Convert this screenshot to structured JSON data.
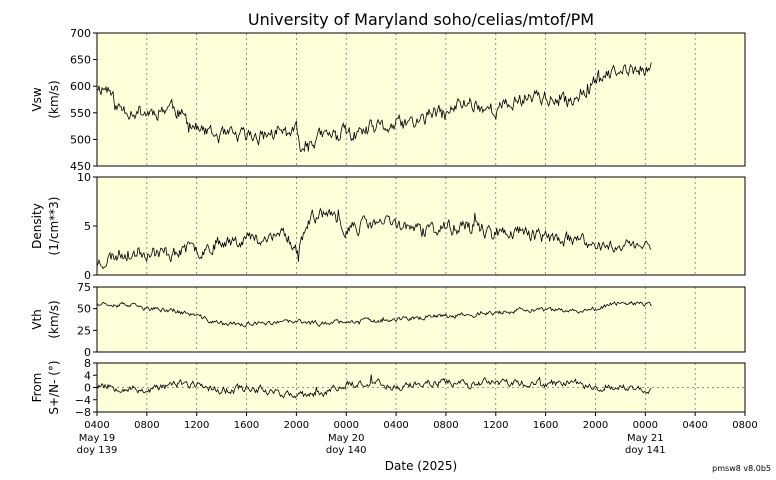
{
  "chart_data": {
    "type": "line",
    "title": "University of Maryland  soho/celias/mtof/PM",
    "xlabel": "Date (2025)",
    "footer": "pmsw8 v8.0b5",
    "x_range_hours": [
      0,
      52
    ],
    "x_ticks": [
      "0400",
      "0800",
      "1200",
      "1600",
      "2000",
      "0000",
      "0400",
      "0800",
      "1200",
      "1600",
      "2000",
      "0000",
      "0400",
      "0800"
    ],
    "date_labels": [
      {
        "tick_index": 0,
        "line1": "May 19",
        "line2": "doy 139"
      },
      {
        "tick_index": 5,
        "line1": "May 20",
        "line2": "doy 140"
      },
      {
        "tick_index": 11,
        "line1": "May 21",
        "line2": "doy 141"
      }
    ],
    "colors": {
      "panel_bg": "#ffffd9",
      "trace": "#000000",
      "grid": "#777777"
    },
    "panels": [
      {
        "name": "Vsw",
        "ylabel": [
          "Vsw",
          "(km/s)"
        ],
        "ylim": [
          450,
          700
        ],
        "yticks": [
          450,
          500,
          550,
          600,
          650,
          700
        ],
        "ytick_labels": [
          "450",
          "500",
          "550",
          "600",
          "650",
          "700"
        ],
        "zero_line": false,
        "seed": 11,
        "noise": 12,
        "profile": [
          [
            0,
            600
          ],
          [
            1,
            595
          ],
          [
            1.5,
            560
          ],
          [
            3,
            555
          ],
          [
            4,
            550
          ],
          [
            5,
            555
          ],
          [
            6,
            565
          ],
          [
            7,
            540
          ],
          [
            8,
            520
          ],
          [
            9,
            510
          ],
          [
            10,
            505
          ],
          [
            12,
            505
          ],
          [
            14,
            510
          ],
          [
            16,
            515
          ],
          [
            16.2,
            485
          ],
          [
            18,
            505
          ],
          [
            20,
            512
          ],
          [
            21,
            505
          ],
          [
            22,
            520
          ],
          [
            24,
            525
          ],
          [
            26,
            535
          ],
          [
            27,
            550
          ],
          [
            28,
            545
          ],
          [
            29,
            565
          ],
          [
            30,
            570
          ],
          [
            31,
            560
          ],
          [
            32,
            555
          ],
          [
            33,
            565
          ],
          [
            34,
            575
          ],
          [
            35,
            585
          ],
          [
            36,
            580
          ],
          [
            37,
            565
          ],
          [
            38,
            575
          ],
          [
            39,
            590
          ],
          [
            40,
            615
          ],
          [
            41,
            620
          ],
          [
            42,
            625
          ],
          [
            43,
            630
          ],
          [
            44.5,
            635
          ]
        ]
      },
      {
        "name": "Density",
        "ylabel": [
          "Density",
          "(1/cm**3)"
        ],
        "ylim": [
          0,
          10
        ],
        "yticks": [
          0,
          5,
          10
        ],
        "ytick_labels": [
          "0",
          "5",
          "10"
        ],
        "zero_line": false,
        "seed": 23,
        "noise": 0.6,
        "profile": [
          [
            0,
            1.2
          ],
          [
            2,
            2.3
          ],
          [
            4,
            2.4
          ],
          [
            6,
            2.2
          ],
          [
            7,
            2.6
          ],
          [
            8,
            2.5
          ],
          [
            9,
            3.0
          ],
          [
            10,
            3.5
          ],
          [
            12,
            3.8
          ],
          [
            14,
            3.5
          ],
          [
            15,
            4.5
          ],
          [
            16,
            2.5
          ],
          [
            17,
            5.5
          ],
          [
            18,
            6.5
          ],
          [
            19,
            5.5
          ],
          [
            20,
            4.8
          ],
          [
            21,
            5.0
          ],
          [
            22,
            5.2
          ],
          [
            24,
            5.3
          ],
          [
            26,
            4.5
          ],
          [
            28,
            4.8
          ],
          [
            30,
            5.0
          ],
          [
            32,
            4.2
          ],
          [
            34,
            4.5
          ],
          [
            36,
            3.8
          ],
          [
            38,
            3.5
          ],
          [
            40,
            3.0
          ],
          [
            42,
            3.0
          ],
          [
            44.5,
            3.0
          ]
        ]
      },
      {
        "name": "Vth",
        "ylabel": [
          "Vth",
          "(km/s)"
        ],
        "ylim": [
          0,
          75
        ],
        "yticks": [
          0,
          25,
          50,
          75
        ],
        "ytick_labels": [
          "0",
          "25",
          "50",
          "75"
        ],
        "zero_line": false,
        "seed": 37,
        "noise": 2.2,
        "profile": [
          [
            0,
            57
          ],
          [
            2,
            55
          ],
          [
            4,
            50
          ],
          [
            6,
            48
          ],
          [
            8,
            42
          ],
          [
            9,
            36
          ],
          [
            10,
            33
          ],
          [
            12,
            32
          ],
          [
            14,
            33
          ],
          [
            16,
            35
          ],
          [
            18,
            33
          ],
          [
            20,
            36
          ],
          [
            22,
            36
          ],
          [
            24,
            38
          ],
          [
            26,
            39
          ],
          [
            28,
            42
          ],
          [
            30,
            43
          ],
          [
            32,
            45
          ],
          [
            34,
            48
          ],
          [
            36,
            48
          ],
          [
            38,
            47
          ],
          [
            40,
            50
          ],
          [
            42,
            58
          ],
          [
            43,
            56
          ],
          [
            44.5,
            54
          ]
        ]
      },
      {
        "name": "From S+/N-",
        "ylabel": [
          "From",
          "S+/N- (°)"
        ],
        "ylim": [
          -8,
          8
        ],
        "yticks": [
          -8,
          -4,
          0,
          4,
          8
        ],
        "ytick_labels": [
          "−8",
          "−4",
          "0",
          "4",
          "8"
        ],
        "zero_line": true,
        "seed": 53,
        "noise": 1.0,
        "profile": [
          [
            0,
            1
          ],
          [
            2,
            0
          ],
          [
            4,
            -1
          ],
          [
            6,
            1
          ],
          [
            8,
            1
          ],
          [
            10,
            -1
          ],
          [
            12,
            0
          ],
          [
            14,
            -1
          ],
          [
            16,
            -3
          ],
          [
            18,
            -2
          ],
          [
            20,
            1
          ],
          [
            22,
            2
          ],
          [
            24,
            0
          ],
          [
            26,
            1
          ],
          [
            28,
            2
          ],
          [
            30,
            1
          ],
          [
            32,
            2
          ],
          [
            34,
            1
          ],
          [
            36,
            1
          ],
          [
            38,
            2
          ],
          [
            40,
            0
          ],
          [
            42,
            0
          ],
          [
            44.5,
            -1
          ]
        ]
      }
    ]
  }
}
